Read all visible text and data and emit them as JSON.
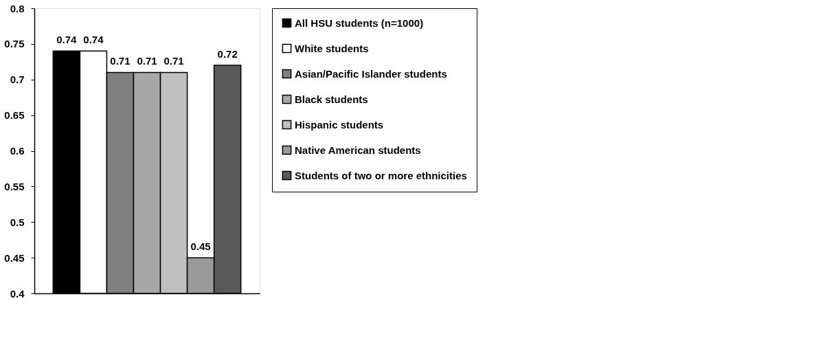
{
  "chart_data": {
    "type": "bar",
    "categories": [
      null
    ],
    "series": [
      {
        "name": "All HSU students (n=1000)",
        "color": "#000000",
        "values": [
          0.74
        ]
      },
      {
        "name": "White students",
        "color": "#ffffff",
        "values": [
          0.74
        ]
      },
      {
        "name": "Asian/Pacific Islander students",
        "color": "#808080",
        "values": [
          0.71
        ]
      },
      {
        "name": "Black students",
        "color": "#a8a8a8",
        "values": [
          0.71
        ]
      },
      {
        "name": "Hispanic students",
        "color": "#c0c0c0",
        "values": [
          0.71
        ]
      },
      {
        "name": "Native American students",
        "color": "#9a9a9a",
        "values": [
          0.45
        ]
      },
      {
        "name": "Students of two or more ethnicities",
        "color": "#595959",
        "values": [
          0.72
        ]
      }
    ],
    "ylim": [
      0.4,
      0.8
    ],
    "yticks": [
      0.4,
      0.45,
      0.5,
      0.55,
      0.6,
      0.65,
      0.7,
      0.75,
      0.8
    ],
    "data_labels": true,
    "legend": "right",
    "tick_labels": "y"
  }
}
